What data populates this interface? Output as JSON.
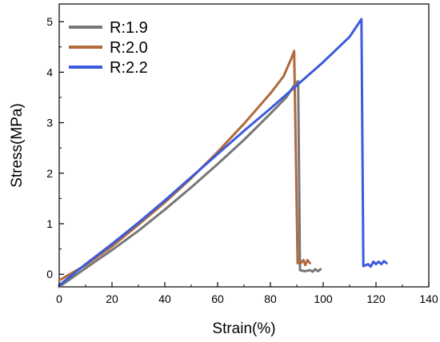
{
  "chart_data": {
    "type": "line",
    "title": "",
    "xlabel": "Strain(%)",
    "ylabel": "Stress(MPa)",
    "xlim": [
      0,
      140
    ],
    "ylim": [
      -0.25,
      5.35
    ],
    "xticks": [
      0,
      20,
      40,
      60,
      80,
      100,
      120,
      140
    ],
    "yticks": [
      0,
      1,
      2,
      3,
      4,
      5
    ],
    "grid": false,
    "legend_position": "top-left",
    "series": [
      {
        "name": "R:1.9",
        "color": "#777777",
        "points": [
          [
            0,
            -0.25
          ],
          [
            10,
            0.12
          ],
          [
            20,
            0.48
          ],
          [
            30,
            0.86
          ],
          [
            40,
            1.28
          ],
          [
            50,
            1.72
          ],
          [
            60,
            2.18
          ],
          [
            70,
            2.66
          ],
          [
            80,
            3.18
          ],
          [
            86,
            3.5
          ],
          [
            89.5,
            3.78
          ],
          [
            90.5,
            3.82
          ],
          [
            91.2,
            0.08
          ],
          [
            93,
            0.06
          ],
          [
            95,
            0.08
          ],
          [
            96,
            0.05
          ],
          [
            97,
            0.1
          ],
          [
            98,
            0.06
          ],
          [
            99,
            0.1
          ]
        ]
      },
      {
        "name": "R:2.0",
        "color": "#b06a3b",
        "points": [
          [
            0,
            -0.12
          ],
          [
            10,
            0.18
          ],
          [
            20,
            0.55
          ],
          [
            30,
            0.98
          ],
          [
            40,
            1.42
          ],
          [
            50,
            1.9
          ],
          [
            60,
            2.42
          ],
          [
            70,
            2.98
          ],
          [
            80,
            3.58
          ],
          [
            85,
            3.92
          ],
          [
            88,
            4.28
          ],
          [
            89,
            4.42
          ],
          [
            90.3,
            0.22
          ],
          [
            91.5,
            0.22
          ],
          [
            92.5,
            0.28
          ],
          [
            93.2,
            0.18
          ],
          [
            94,
            0.28
          ],
          [
            95,
            0.22
          ]
        ]
      },
      {
        "name": "R:2.2",
        "color": "#3b5bdb",
        "points": [
          [
            0,
            -0.22
          ],
          [
            10,
            0.2
          ],
          [
            20,
            0.6
          ],
          [
            30,
            1.02
          ],
          [
            40,
            1.46
          ],
          [
            50,
            1.92
          ],
          [
            60,
            2.38
          ],
          [
            70,
            2.84
          ],
          [
            80,
            3.28
          ],
          [
            90,
            3.74
          ],
          [
            100,
            4.2
          ],
          [
            110,
            4.7
          ],
          [
            114.5,
            5.05
          ],
          [
            115.2,
            0.16
          ],
          [
            117,
            0.2
          ],
          [
            118,
            0.15
          ],
          [
            119,
            0.25
          ],
          [
            120,
            0.2
          ],
          [
            121,
            0.25
          ],
          [
            122,
            0.2
          ],
          [
            123,
            0.26
          ],
          [
            124,
            0.22
          ]
        ]
      }
    ]
  }
}
